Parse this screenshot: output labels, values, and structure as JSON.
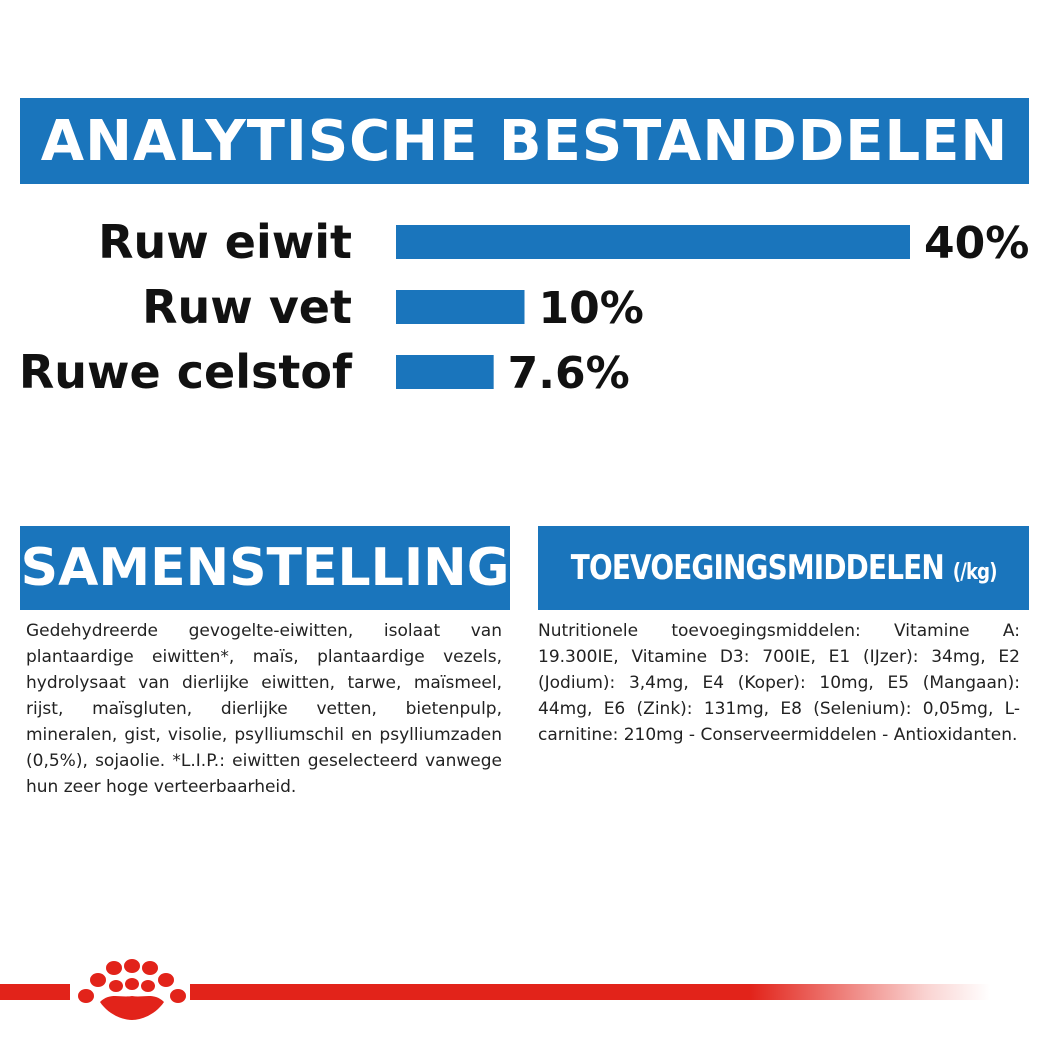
{
  "header": {
    "title": "ANALYTISCHE BESTANDDELEN"
  },
  "chart_data": {
    "type": "bar",
    "orientation": "horizontal",
    "categories": [
      "Ruw eiwit",
      "Ruw vet",
      "Ruwe celstof"
    ],
    "values": [
      40,
      10,
      7.6
    ],
    "value_labels": [
      "40%",
      "10%",
      "7.6%"
    ],
    "title": "ANALYTISCHE BESTANDDELEN",
    "xlabel": "",
    "ylabel": "",
    "xlim": [
      0,
      40
    ],
    "grid": false,
    "bar_color": "#1a75bc"
  },
  "samenstelling": {
    "heading": "SAMENSTELLING",
    "text": "Gedehydreerde gevogelte-eiwitten, isolaat van plantaardige eiwitten*, maïs, plantaardige vezels, hydrolysaat van dierlijke eiwitten, tarwe, maïsmeel, rijst, maïsgluten, dierlijke vetten, bietenpulp, mineralen, gist, visolie, psylliumschil en psylliumzaden (0,5%), sojaolie. *L.I.P.: eiwitten geselecteerd vanwege hun zeer hoge verteerbaarheid."
  },
  "toevoegingsmiddelen": {
    "heading": "TOEVOEGINGSMIDDELEN",
    "heading_suffix": "(/kg)",
    "text": "Nutritionele toevoegingsmiddelen: Vitamine A: 19.300IE, Vitamine D3: 700IE, E1 (IJzer): 34mg, E2 (Jodium): 3,4mg, E4 (Koper): 10mg, E5 (Mangaan): 44mg, E6 (Zink): 131mg, E8 (Selenium): 0,05mg, L-carnitine: 210mg - Conserveermiddelen - Antioxidanten."
  },
  "colors": {
    "brand_blue": "#1a75bc",
    "brand_red": "#e2231a"
  },
  "logo": {
    "icon": "royal-canin-crown-icon"
  }
}
